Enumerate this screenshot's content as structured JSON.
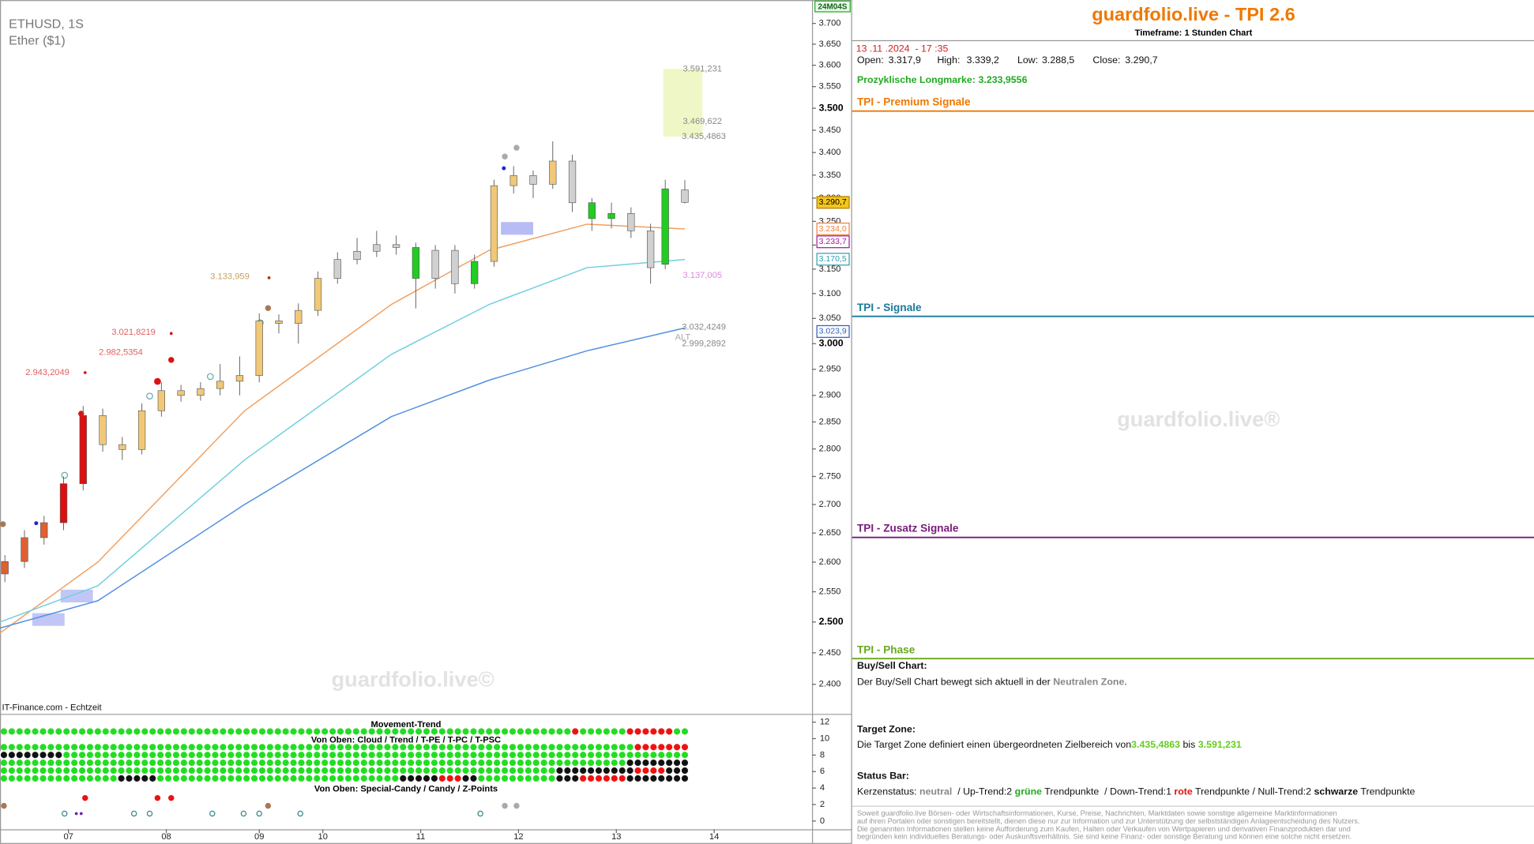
{
  "chart_data": {
    "type": "candlestick",
    "title": "ETHUSD, 1S",
    "subtitle": "Ether ($1)",
    "source": "IT-Finance.com - Echtzeit",
    "watermark": "guardfolio.live©",
    "timer": "24M04S",
    "alt_label": "ALT",
    "log": true,
    "ylim": [
      2354,
      3757
    ],
    "yticks": [
      {
        "value": 2400,
        "label": "2.400"
      },
      {
        "value": 2450,
        "label": "2.450"
      },
      {
        "value": 2500,
        "label": "2.500"
      },
      {
        "value": 2550,
        "label": "2.550"
      },
      {
        "value": 2600,
        "label": "2.600"
      },
      {
        "value": 2650,
        "label": "2.650"
      },
      {
        "value": 2700,
        "label": "2.700"
      },
      {
        "value": 2750,
        "label": "2.750"
      },
      {
        "value": 2800,
        "label": "2.800"
      },
      {
        "value": 2850,
        "label": "2.850"
      },
      {
        "value": 2900,
        "label": "2.900"
      },
      {
        "value": 2950,
        "label": "2.950"
      },
      {
        "value": 3000,
        "label": "3.000"
      },
      {
        "value": 3050,
        "label": "3.050"
      },
      {
        "value": 3100,
        "label": "3.100"
      },
      {
        "value": 3150,
        "label": "3.150"
      },
      {
        "value": 3200,
        "label": "3.200"
      },
      {
        "value": 3250,
        "label": "3.250"
      },
      {
        "value": 3300,
        "label": "3.300"
      },
      {
        "value": 3350,
        "label": "3.350"
      },
      {
        "value": 3400,
        "label": "3.400"
      },
      {
        "value": 3450,
        "label": "3.450"
      },
      {
        "value": 3500,
        "label": "3.500"
      },
      {
        "value": 3550,
        "label": "3.550"
      },
      {
        "value": 3600,
        "label": "3.600"
      },
      {
        "value": 3650,
        "label": "3.650"
      },
      {
        "value": 3700,
        "label": "3.700"
      }
    ],
    "xlim": [
      0,
      166
    ],
    "xticks": [
      {
        "value": 14,
        "label": "07"
      },
      {
        "value": 34,
        "label": "08"
      },
      {
        "value": 53,
        "label": "09"
      },
      {
        "value": 66,
        "label": "10"
      },
      {
        "value": 86,
        "label": "11"
      },
      {
        "value": 106,
        "label": "12"
      },
      {
        "value": 126,
        "label": "13"
      },
      {
        "value": 146,
        "label": "14"
      }
    ],
    "candles": {
      "x": [
        1,
        5,
        9,
        13,
        17,
        21,
        25,
        29,
        33,
        37,
        41,
        45,
        49,
        53,
        57,
        61,
        65,
        69,
        73,
        77,
        81,
        85,
        89,
        93,
        97,
        101,
        105,
        109,
        113,
        117,
        121,
        125,
        129,
        133,
        136,
        140
      ],
      "open": [
        2580,
        2601,
        2642,
        2668,
        2737,
        2862,
        2808,
        2799,
        2871,
        2909,
        2900,
        2913,
        2927,
        2938,
        3045,
        3040,
        3066,
        3131,
        3170,
        3187,
        3201,
        3195,
        3131,
        3189,
        3120,
        3166,
        3327,
        3349,
        3330,
        3381,
        3290,
        3256,
        3267,
        3230,
        3160,
        3317.9
      ],
      "high": [
        2612,
        2655,
        2680,
        2750,
        2880,
        2875,
        2822,
        2885,
        2925,
        2920,
        2925,
        2960,
        2975,
        3060,
        3058,
        3080,
        3145,
        3185,
        3215,
        3230,
        3220,
        3205,
        3200,
        3200,
        3180,
        3340,
        3370,
        3360,
        3425,
        3395,
        3300,
        3290,
        3280,
        3245,
        3340,
        3339.2
      ],
      "low": [
        2566,
        2590,
        2630,
        2655,
        2725,
        2795,
        2780,
        2790,
        2860,
        2888,
        2890,
        2900,
        2900,
        2925,
        3020,
        3000,
        3055,
        3120,
        3160,
        3175,
        3180,
        3070,
        3110,
        3100,
        3110,
        3155,
        3310,
        3300,
        3320,
        3270,
        3230,
        3235,
        3215,
        3120,
        3150,
        3288.5
      ],
      "close": [
        2601,
        2642,
        2668,
        2737,
        2862,
        2808,
        2799,
        2871,
        2909,
        2900,
        2913,
        2927,
        2938,
        3045,
        3040,
        3066,
        3131,
        3170,
        3187,
        3201,
        3195,
        3131,
        3189,
        3120,
        3166,
        3327,
        3349,
        3330,
        3381,
        3290,
        3256,
        3267,
        3230,
        3153,
        3320,
        3290.7
      ],
      "colors": [
        "#e06030",
        "#e06030",
        "#e06030",
        "#dd1010",
        "#dd1010",
        "#f0c878",
        "#f0c878",
        "#f0c878",
        "#f0c878",
        "#f0c878",
        "#f0c878",
        "#f0c878",
        "#f0c878",
        "#f0c878",
        "#f0c878",
        "#f0c878",
        "#f0c878",
        "#d0d0d0",
        "#d0d0d0",
        "#d0d0d0",
        "#d0d0d0",
        "#22cc22",
        "#d0d0d0",
        "#d0d0d0",
        "#22cc22",
        "#f0c878",
        "#f0c878",
        "#d0d0d0",
        "#f0c878",
        "#d0d0d0",
        "#22cc22",
        "#22cc22",
        "#d0d0d0",
        "#d0d0d0",
        "#22cc22",
        "#d0d0d0"
      ]
    },
    "series": [
      {
        "color": "#f0a060",
        "x": [
          0,
          20,
          50,
          80,
          100,
          120,
          140
        ],
        "values": [
          2482,
          2600,
          2871,
          3078,
          3189,
          3244,
          3234
        ]
      },
      {
        "color": "#70d0e0",
        "x": [
          0,
          20,
          50,
          80,
          100,
          120,
          140
        ],
        "values": [
          2500,
          2560,
          2780,
          2979,
          3078,
          3153,
          3170
        ]
      },
      {
        "color": "#5090e0",
        "x": [
          0,
          20,
          50,
          80,
          100,
          120,
          140
        ],
        "values": [
          2490,
          2535,
          2700,
          2860,
          2929,
          2986,
          3031
        ]
      }
    ],
    "annotations": [
      {
        "value": 3591.231,
        "label": "3.591,231",
        "color": "#888888"
      },
      {
        "value": 3469.622,
        "label": "3.469,622",
        "color": "#888888"
      },
      {
        "value": 3435.4863,
        "label": "3.435,4863",
        "color": "#888888"
      },
      {
        "value": 3137.005,
        "label": "3.137,005",
        "color": "#dd88dd"
      },
      {
        "value": 3032.4249,
        "label": "3.032,4249",
        "color": "#888888"
      },
      {
        "value": 2999.2892,
        "label": "2.999,2892",
        "color": "#888888"
      },
      {
        "value": 3133.959,
        "label": "3.133,959",
        "color": "#c8a060"
      },
      {
        "value": 3021.8219,
        "label": "3.021,8219",
        "color": "#e06060"
      },
      {
        "value": 2982.5354,
        "label": "2.982,5354",
        "color": "#e06060"
      },
      {
        "value": 2943.2049,
        "label": "2.943,2049",
        "color": "#e06060"
      }
    ],
    "price_tags": [
      {
        "value": 3290.7,
        "label": "3.290,7",
        "color": "#b08000",
        "fill": "#f5c518"
      },
      {
        "value": 3234.0,
        "label": "3.234,0",
        "color": "#f08040"
      },
      {
        "value": 3233.7,
        "label": "3.233,7",
        "color": "#a020a0"
      },
      {
        "value": 3170.5,
        "label": "3.170,5",
        "color": "#30a0b0"
      },
      {
        "value": 3023.9,
        "label": "3.023,9",
        "color": "#3060c0"
      }
    ],
    "indicator": {
      "titles": [
        "Movement-Trend",
        "Von Oben: Cloud / Trend / T-PE / T-PC / T-PSC",
        "Von Oben: Special-Candy / Candy / Z-Points"
      ],
      "ylim": [
        -1,
        13
      ],
      "yticks": [
        0,
        2,
        4,
        6,
        8,
        10,
        12
      ]
    }
  },
  "panel": {
    "title": "guardfolio.live - TPI 2.6",
    "timeframe": "Timeframe: 1 Stunden Chart",
    "datetime": "13 .11 .2024  - 17 :35",
    "ohlc": [
      "Open:",
      "3.317,9",
      "High:",
      "3.339,2",
      "Low:",
      "3.288,5",
      "Close:",
      "3.290,7"
    ],
    "longmarke": [
      "Prozyklische Longmarke:",
      "3.233,9556"
    ],
    "sections": [
      "TPI - Premium Signale",
      "TPI - Signale",
      "TPI - Zusatz Signale",
      "TPI - Phase"
    ],
    "watermark": "guardfolio.live®",
    "buy_sell": {
      "heading": "Buy/Sell Chart:",
      "text": "Der Buy/Sell Chart bewegt sich aktuell in der ",
      "zone": "Neutralen Zone."
    },
    "target": {
      "heading": "Target Zone:",
      "parts": [
        "Die Target Zone definiert einen übergeordneten Zielbereich von",
        "3.435,4863",
        " bis ",
        "3.591,231"
      ]
    },
    "status": {
      "heading": "Status Bar:",
      "parts": [
        "Kerzenstatus: ",
        "neutral",
        "  / Up-Trend:2 ",
        "grüne",
        " Trendpunkte  / Down-Trend:1 ",
        "rote",
        " Trendpunkte / Null-Trend:2 ",
        "schwarze",
        " Trendpunkte"
      ]
    },
    "disclaimer": [
      "Soweit guardfolio.live Börsen- oder Wirtschaftsinformationen, Kurse, Preise, Nachrichten, Marktdaten sowie sonstige allgemeine Marktinformationen",
      "auf ihren Portalen oder sonstigen bereitstellt, dienen diese nur zur Information und zur Unterstützung der selbstständigen Anlageentscheidung des Nutzers.",
      "Die genannten Informationen stellen keine Aufforderung zum Kaufen, Halten oder Verkaufen von Wertpapieren und derivativen Finanzprodukten dar und",
      "begründen kein individuelles Beratungs- oder Auskunftsverhältnis. Sie sind keine Finanz- oder sonstige Beratung und können eine solche nicht ersetzen."
    ]
  }
}
